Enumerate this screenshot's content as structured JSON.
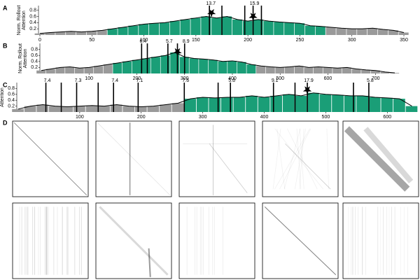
{
  "chart_data": [
    {
      "type": "bar",
      "panel_label": "A",
      "y_label": [
        "Norm. Rollout",
        "Attention"
      ],
      "x": [
        0,
        10,
        20,
        30,
        40,
        50,
        60,
        70,
        80,
        90,
        100,
        110,
        120,
        130,
        140,
        150,
        160,
        170,
        180,
        190,
        200,
        210,
        220,
        230,
        240,
        250,
        260,
        270,
        280,
        290,
        300,
        310,
        320,
        330,
        340,
        350
      ],
      "values": [
        0.05,
        0.08,
        0.1,
        0.12,
        0.1,
        0.12,
        0.15,
        0.2,
        0.25,
        0.3,
        0.35,
        0.38,
        0.4,
        0.45,
        0.5,
        0.55,
        0.6,
        0.55,
        0.6,
        0.5,
        0.45,
        0.5,
        0.45,
        0.42,
        0.4,
        0.38,
        0.3,
        0.28,
        0.25,
        0.22,
        0.2,
        0.2,
        0.22,
        0.18,
        0.15,
        0.08
      ],
      "color": "#9a9a9a",
      "highlight": {
        "xlim": [
          65,
          270
        ],
        "color": "#1a9e77"
      },
      "xlim": [
        0,
        350
      ],
      "xticks": [
        0,
        50,
        100,
        150,
        200,
        250,
        300,
        350
      ],
      "ylim": [
        0,
        0.95
      ],
      "yticks": [
        0.2,
        0.4,
        0.6,
        0.8
      ],
      "markers": [
        {
          "x": 163,
          "label": "13.7"
        },
        {
          "x": 175
        },
        {
          "x": 197
        },
        {
          "x": 205,
          "label": "15.9"
        },
        {
          "x": 213
        }
      ],
      "stars": [
        {
          "x": 165,
          "y": 0.72
        },
        {
          "x": 205,
          "y": 0.6
        }
      ]
    },
    {
      "type": "bar",
      "panel_label": "B",
      "y_label": [
        "Norm. Rollout",
        "Attention"
      ],
      "x": [
        0,
        20,
        40,
        60,
        80,
        100,
        120,
        140,
        160,
        180,
        200,
        220,
        240,
        260,
        280,
        300,
        320,
        340,
        360,
        380,
        400,
        420,
        440,
        460,
        480,
        500,
        520,
        540,
        560,
        580,
        600,
        620,
        640,
        660,
        680,
        700,
        720,
        740
      ],
      "values": [
        0.1,
        0.15,
        0.2,
        0.22,
        0.18,
        0.2,
        0.25,
        0.3,
        0.35,
        0.4,
        0.45,
        0.5,
        0.55,
        0.6,
        0.7,
        0.55,
        0.5,
        0.48,
        0.45,
        0.4,
        0.42,
        0.38,
        0.3,
        0.25,
        0.22,
        0.2,
        0.22,
        0.25,
        0.2,
        0.22,
        0.2,
        0.18,
        0.2,
        0.15,
        0.12,
        0.1,
        0.05,
        0.02
      ],
      "color": "#9a9a9a",
      "highlight": {
        "xlim": [
          150,
          450
        ],
        "color": "#1a9e77"
      },
      "xlim": [
        0,
        740
      ],
      "xticks": [
        100,
        200,
        300,
        400,
        500,
        600,
        700
      ],
      "ylim": [
        0,
        1.0
      ],
      "yticks": [
        0.2,
        0.4,
        0.6,
        0.8
      ],
      "markers": [
        {
          "x": 210,
          "label": "6.4"
        },
        {
          "x": 222
        },
        {
          "x": 265,
          "label": "5.7"
        },
        {
          "x": 285
        },
        {
          "x": 300,
          "label": "8.9"
        }
      ],
      "stars": [
        {
          "x": 285,
          "y": 0.72
        }
      ]
    },
    {
      "type": "bar",
      "panel_label": "C",
      "y_label": [
        "Norm. Rollout",
        "Attention"
      ],
      "x": [
        0,
        20,
        40,
        60,
        80,
        100,
        120,
        140,
        160,
        180,
        200,
        220,
        240,
        260,
        280,
        300,
        320,
        340,
        360,
        380,
        400,
        420,
        440,
        460,
        480,
        500,
        520,
        540,
        560,
        580,
        600,
        620,
        640
      ],
      "values": [
        0.1,
        0.2,
        0.25,
        0.2,
        0.18,
        0.2,
        0.22,
        0.2,
        0.25,
        0.2,
        0.18,
        0.2,
        0.25,
        0.3,
        0.45,
        0.5,
        0.48,
        0.5,
        0.5,
        0.55,
        0.5,
        0.55,
        0.6,
        0.55,
        0.65,
        0.6,
        0.58,
        0.55,
        0.55,
        0.5,
        0.48,
        0.45,
        0.2
      ],
      "color": "#9a9a9a",
      "highlight": {
        "xlim": [
          280,
          650
        ],
        "color": "#1a9e77"
      },
      "xlim": [
        0,
        660
      ],
      "xticks": [
        100,
        200,
        300,
        400,
        500,
        600
      ],
      "ylim": [
        0,
        1.0
      ],
      "yticks": [
        0.2,
        0.4,
        0.6,
        0.8
      ],
      "markers": [
        {
          "x": 45,
          "label": "7.4"
        },
        {
          "x": 70
        },
        {
          "x": 95,
          "label": "7.3"
        },
        {
          "x": 130
        },
        {
          "x": 155,
          "label": "7.4"
        },
        {
          "x": 195,
          "label": "7.1"
        },
        {
          "x": 270,
          "label": "7.6"
        },
        {
          "x": 325
        },
        {
          "x": 345,
          "label": "5.6"
        },
        {
          "x": 415,
          "label": "9.1"
        },
        {
          "x": 450
        },
        {
          "x": 470,
          "label": "17.9"
        },
        {
          "x": 545
        },
        {
          "x": 570,
          "label": "5.8"
        }
      ],
      "stars": [
        {
          "x": 470,
          "y": 0.75
        }
      ]
    }
  ],
  "panel_d": {
    "label": "D"
  }
}
